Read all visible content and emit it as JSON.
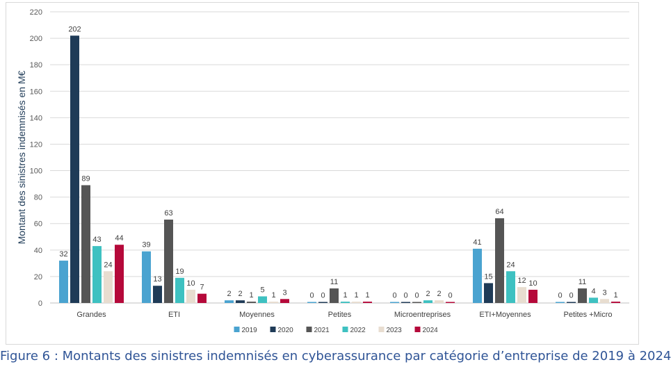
{
  "caption": "Figure 6 : Montants des sinistres indemnisés en cyberassurance par catégorie d’entreprise de 2019 à 2024",
  "chart_data": {
    "type": "bar",
    "title": "",
    "xlabel": "",
    "ylabel": "Montant des sinistres indemnisés en M€",
    "ylim": [
      0,
      220
    ],
    "yticks": [
      0,
      20,
      40,
      60,
      80,
      100,
      120,
      140,
      160,
      180,
      200,
      220
    ],
    "grid": true,
    "legend_position": "bottom",
    "categories": [
      "Grandes",
      "ETI",
      "Moyennes",
      "Petites",
      "Microentreprises",
      "ETI+Moyennes",
      "Petites +Micro"
    ],
    "series": [
      {
        "name": "2019",
        "color": "#4aa3d0",
        "values": [
          32,
          39,
          2,
          0,
          0,
          41,
          0
        ]
      },
      {
        "name": "2020",
        "color": "#1f3b57",
        "values": [
          202,
          13,
          2,
          0,
          0,
          15,
          0
        ]
      },
      {
        "name": "2021",
        "color": "#555555",
        "values": [
          89,
          63,
          1,
          11,
          0,
          64,
          11
        ]
      },
      {
        "name": "2022",
        "color": "#3ec1c1",
        "values": [
          43,
          19,
          5,
          1,
          2,
          24,
          4
        ]
      },
      {
        "name": "2023",
        "color": "#e8ddd0",
        "values": [
          24,
          10,
          1,
          1,
          2,
          12,
          3
        ]
      },
      {
        "name": "2024",
        "color": "#b5093a",
        "values": [
          44,
          7,
          3,
          1,
          0,
          10,
          1
        ]
      }
    ]
  }
}
